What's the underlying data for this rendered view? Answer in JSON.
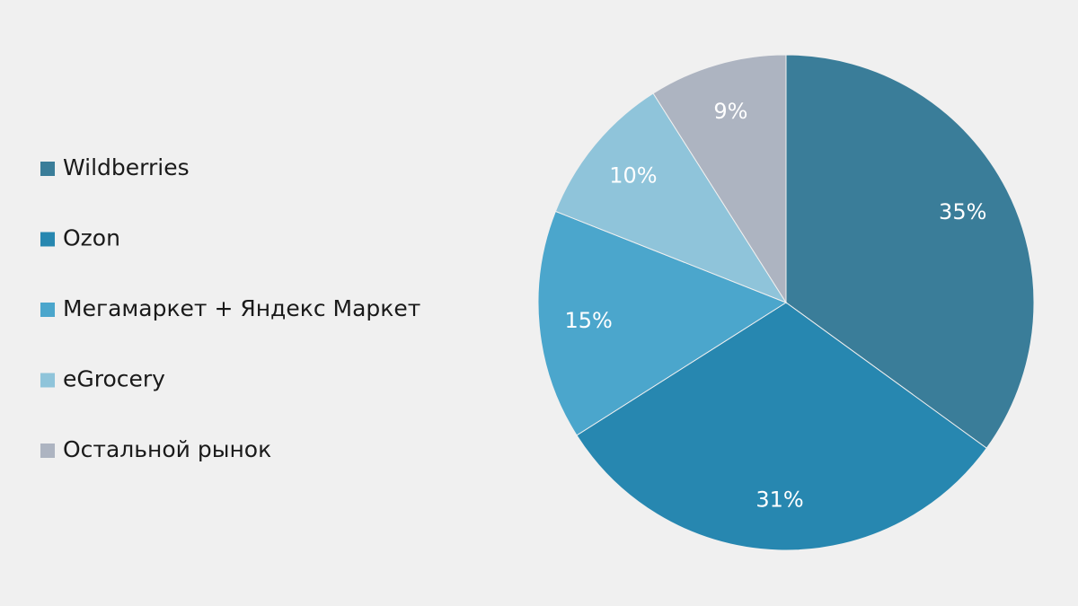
{
  "chart_data": {
    "type": "pie",
    "categories": [
      "Wildberries",
      "Ozon",
      "Мегамаркет + Яндекс Маркет",
      "eGrocery",
      "Остальной рынок"
    ],
    "values": [
      35,
      31,
      15,
      10,
      9
    ],
    "value_labels": [
      "35%",
      "31%",
      "15%",
      "10%",
      "9%"
    ],
    "colors": [
      "#3a7d99",
      "#2787b0",
      "#4ba6cc",
      "#8fc4da",
      "#adb4c1"
    ],
    "legend": "left"
  }
}
